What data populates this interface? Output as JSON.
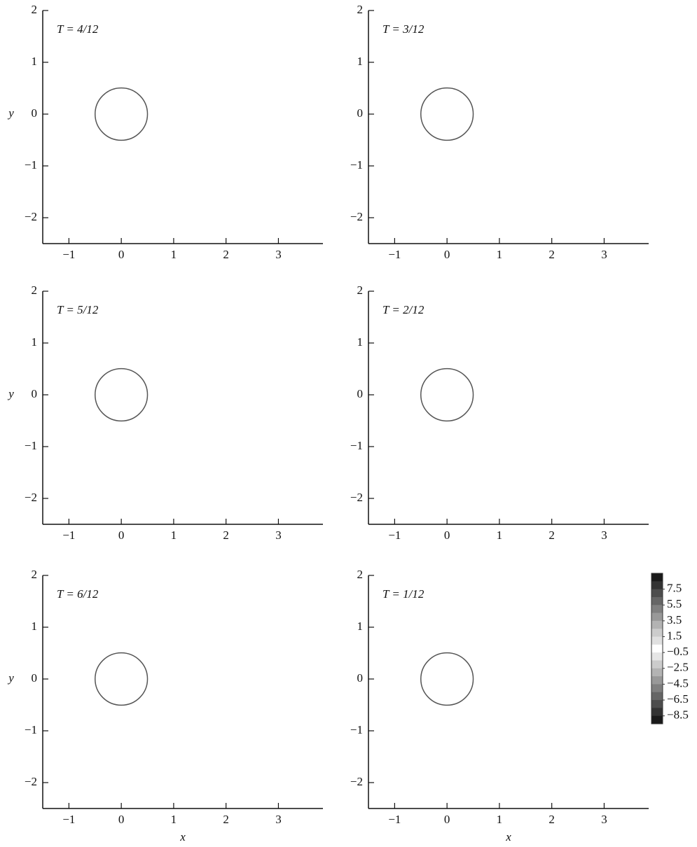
{
  "chart_data": [
    {
      "type": "contour",
      "title": "T = 4/12",
      "ylabel": "y",
      "xlim": [
        -1.5,
        3.85
      ],
      "ylim": [
        -2.5,
        2
      ],
      "xticks": [
        {
          "value": -1,
          "label": "−1"
        },
        0,
        1,
        2,
        3
      ],
      "yticks": [
        {
          "value": -2,
          "label": "−2"
        },
        {
          "value": -1,
          "label": "−1"
        },
        0,
        1,
        2
      ]
    },
    {
      "type": "contour",
      "title": "T = 3/12",
      "xlim": [
        -1.5,
        3.85
      ],
      "ylim": [
        -2.5,
        2
      ],
      "xticks": [
        {
          "value": -1,
          "label": "−1"
        },
        0,
        1,
        2,
        3
      ],
      "yticks": [
        {
          "value": -2,
          "label": "−2"
        },
        {
          "value": -1,
          "label": "−1"
        },
        0,
        1,
        2
      ]
    },
    {
      "type": "contour",
      "title": "T = 5/12",
      "ylabel": "y",
      "xlim": [
        -1.5,
        3.85
      ],
      "ylim": [
        -2.5,
        2
      ],
      "xticks": [
        {
          "value": -1,
          "label": "−1"
        },
        0,
        1,
        2,
        3
      ],
      "yticks": [
        {
          "value": -2,
          "label": "−2"
        },
        {
          "value": -1,
          "label": "−1"
        },
        0,
        1,
        2
      ]
    },
    {
      "type": "contour",
      "title": "T = 2/12",
      "xlim": [
        -1.5,
        3.85
      ],
      "ylim": [
        -2.5,
        2
      ],
      "xticks": [
        {
          "value": -1,
          "label": "−1"
        },
        0,
        1,
        2,
        3
      ],
      "yticks": [
        {
          "value": -2,
          "label": "−2"
        },
        {
          "value": -1,
          "label": "−1"
        },
        0,
        1,
        2
      ]
    },
    {
      "type": "contour",
      "title": "T = 6/12",
      "ylabel": "y",
      "xlabel": "x",
      "xlim": [
        -1.5,
        3.85
      ],
      "ylim": [
        -2.5,
        2
      ],
      "xticks": [
        {
          "value": -1,
          "label": "−1"
        },
        0,
        1,
        2,
        3
      ],
      "yticks": [
        {
          "value": -2,
          "label": "−2"
        },
        {
          "value": -1,
          "label": "−1"
        },
        0,
        1,
        2
      ]
    },
    {
      "type": "contour",
      "title": "T = 1/12",
      "xlabel": "x",
      "xlim": [
        -1.5,
        3.85
      ],
      "ylim": [
        -2.5,
        2
      ],
      "xticks": [
        {
          "value": -1,
          "label": "−1"
        },
        0,
        1,
        2,
        3
      ],
      "yticks": [
        {
          "value": -2,
          "label": "−2"
        },
        {
          "value": -1,
          "label": "−1"
        },
        0,
        1,
        2
      ]
    },
    {
      "type": "colorbar",
      "clim": [
        -9.5,
        9.5
      ],
      "colors": [
        "#1a1a1a",
        "#333",
        "#4d4d4d",
        "#666",
        "#808080",
        "#999",
        "#b3b3b3",
        "#ccc",
        "#e0e0e0",
        "#fff",
        "#e6e6e6",
        "#ccc",
        "#b3b3b3",
        "#999",
        "#808080",
        "#666",
        "#4d4d4d",
        "#333",
        "#1a1a1a"
      ],
      "ticks": [
        7.5,
        5.5,
        3.5,
        1.5,
        {
          "value": -0.5,
          "label": "−0.5"
        },
        {
          "value": -2.5,
          "label": "−2.5"
        },
        {
          "value": -4.5,
          "label": "−4.5"
        },
        {
          "value": -6.5,
          "label": "−6.5"
        },
        {
          "value": -8.5,
          "label": "−8.5"
        }
      ]
    }
  ]
}
